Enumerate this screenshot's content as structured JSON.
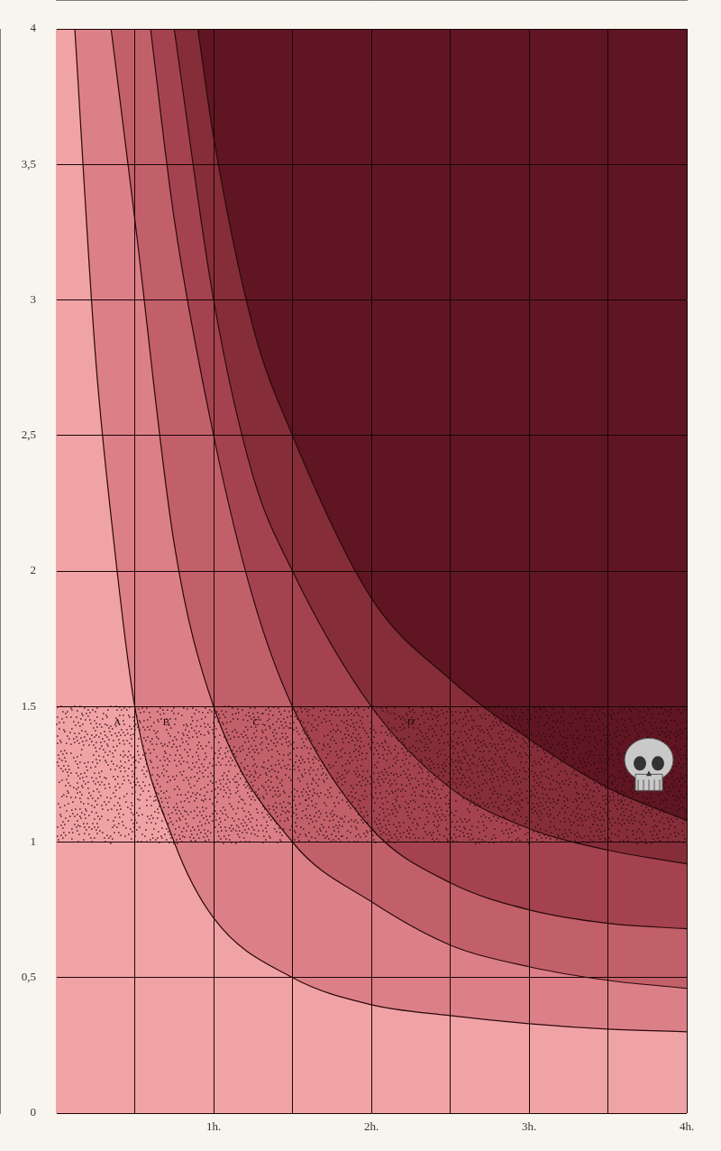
{
  "chart_data": {
    "type": "area",
    "xlim": [
      0,
      4
    ],
    "xticks": [
      {
        "value": 0.5,
        "label": null
      },
      {
        "value": 1,
        "label": "1h."
      },
      {
        "value": 1.5,
        "label": null
      },
      {
        "value": 2,
        "label": "2h."
      },
      {
        "value": 2.5,
        "label": null
      },
      {
        "value": 3,
        "label": "3h."
      },
      {
        "value": 3.5,
        "label": null
      },
      {
        "value": 4,
        "label": "4h."
      }
    ],
    "ylim": [
      0,
      4
    ],
    "yticks": [
      0,
      {
        "value": 0.5,
        "label": "0,5"
      },
      1,
      {
        "value": 1.5,
        "label": "1.5"
      },
      2,
      {
        "value": 2.5,
        "label": "2,5"
      },
      3,
      {
        "value": 3.5,
        "label": "3,5"
      },
      4
    ],
    "grid": true,
    "color": "#f0a3a5",
    "series": [
      {
        "color": "#dc8088",
        "x": [
          0.12,
          0.25,
          0.35,
          0.5,
          0.75,
          1,
          1.5,
          2,
          2.5,
          3,
          3.5,
          4
        ],
        "values": [
          4,
          2.8,
          2.2,
          1.5,
          1.0,
          0.72,
          0.5,
          0.4,
          0.36,
          0.33,
          0.31,
          0.3
        ]
      },
      {
        "color": "#c2606a",
        "x": [
          0.35,
          0.5,
          0.75,
          1,
          1.5,
          2,
          2.5,
          3,
          3.5,
          4
        ],
        "values": [
          4,
          3.3,
          2.1,
          1.5,
          1.0,
          0.78,
          0.62,
          0.54,
          0.49,
          0.46
        ]
      },
      {
        "color": "#a4434f",
        "x": [
          0.6,
          0.75,
          1,
          1.25,
          1.5,
          2,
          2.5,
          3,
          3.5,
          4
        ],
        "values": [
          4,
          3.3,
          2.5,
          1.9,
          1.5,
          1.05,
          0.85,
          0.75,
          0.7,
          0.68
        ]
      },
      {
        "color": "#862d3a",
        "x": [
          0.75,
          1,
          1.25,
          1.5,
          2,
          2.5,
          3,
          3.5,
          4
        ],
        "values": [
          4,
          3.0,
          2.35,
          2.0,
          1.5,
          1.2,
          1.05,
          0.97,
          0.92
        ]
      },
      {
        "color": "#5f1622",
        "x": [
          0.9,
          1,
          1.25,
          1.5,
          2,
          2.5,
          3,
          3.5,
          4
        ],
        "values": [
          4,
          3.6,
          2.9,
          2.5,
          1.9,
          1.6,
          1.38,
          1.2,
          1.08
        ]
      }
    ],
    "highlight_band": [
      1,
      1.5
    ],
    "annotations": [
      {
        "text": "A",
        "x": 0.39,
        "y": 1.46
      },
      {
        "text": "B",
        "x": 0.7,
        "y": 1.46
      },
      {
        "text": "C",
        "x": 1.27,
        "y": 1.46
      },
      {
        "text": "D",
        "x": 2.25,
        "y": 1.46
      }
    ]
  }
}
